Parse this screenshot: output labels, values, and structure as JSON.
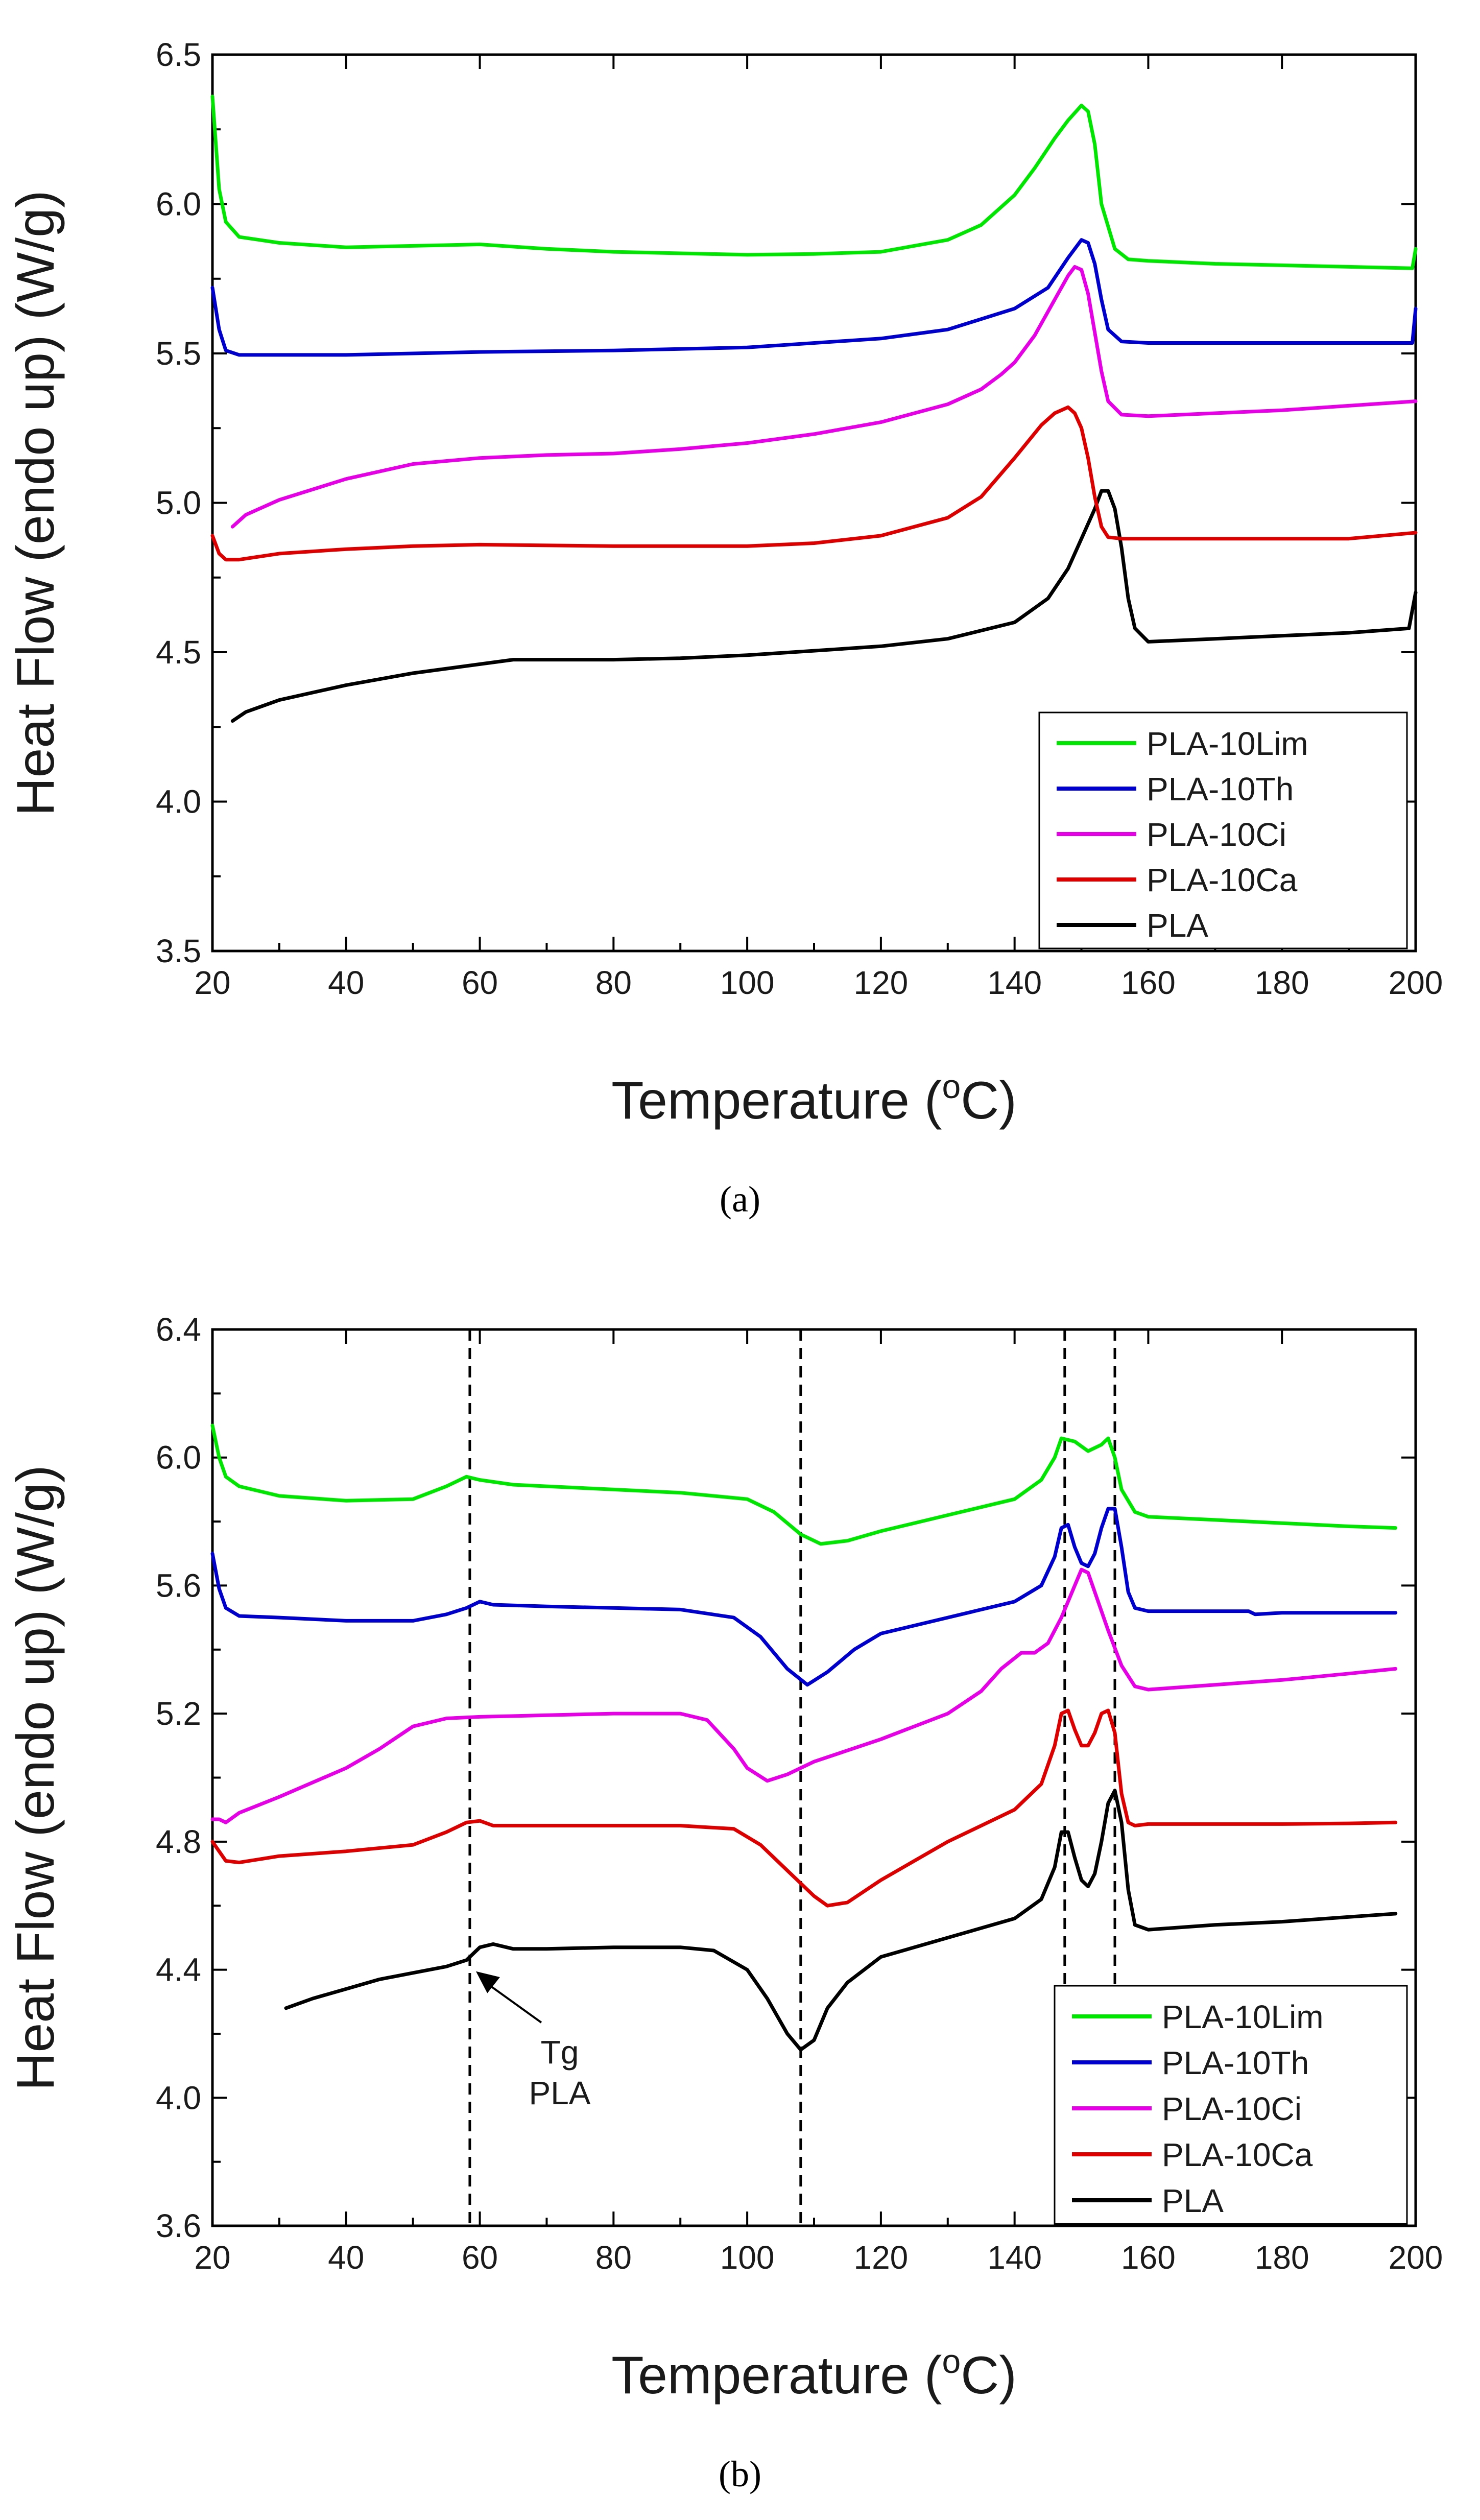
{
  "colors": {
    "PLA-10Lim": "#00e600",
    "PLA-10Th": "#0000cc",
    "PLA-10Ci": "#e600e6",
    "PLA-10Ca": "#dd0000",
    "PLA": "#000000"
  },
  "chart_data": [
    {
      "panel": "(a)",
      "type": "line",
      "title": "",
      "xlabel": "Temperature (",
      "xlabel_sup": "o",
      "xlabel_end": "C)",
      "ylabel": "Heat Flow (endo up) (W/g)",
      "xlim": [
        20,
        200
      ],
      "ylim": [
        3.5,
        6.5
      ],
      "xticks": [
        "20",
        "40",
        "60",
        "80",
        "100",
        "120",
        "140",
        "160",
        "180",
        "200"
      ],
      "yticks": [
        "3.5",
        "4.0",
        "4.5",
        "5.0",
        "5.5",
        "6.0",
        "6.5"
      ],
      "legend_position": "bottom-right",
      "series": [
        {
          "name": "PLA-10Lim",
          "x": [
            20,
            21,
            22,
            24,
            30,
            40,
            50,
            60,
            70,
            80,
            90,
            100,
            110,
            120,
            130,
            135,
            140,
            143,
            146,
            148,
            150,
            151,
            152,
            153,
            155,
            157,
            160,
            170,
            180,
            190,
            199.5,
            200
          ],
          "y": [
            6.36,
            6.05,
            5.94,
            5.89,
            5.87,
            5.855,
            5.86,
            5.865,
            5.85,
            5.84,
            5.835,
            5.83,
            5.833,
            5.84,
            5.88,
            5.93,
            6.03,
            6.12,
            6.22,
            6.28,
            6.33,
            6.31,
            6.2,
            6.0,
            5.85,
            5.815,
            5.81,
            5.8,
            5.795,
            5.79,
            5.785,
            5.85
          ]
        },
        {
          "name": "PLA-10Th",
          "x": [
            20,
            21,
            22,
            24,
            30,
            40,
            50,
            60,
            80,
            100,
            120,
            130,
            140,
            145,
            148,
            150,
            151,
            152,
            153,
            154,
            156,
            160,
            170,
            180,
            190,
            199.5,
            200
          ],
          "y": [
            5.72,
            5.58,
            5.51,
            5.495,
            5.495,
            5.495,
            5.5,
            5.505,
            5.51,
            5.52,
            5.55,
            5.58,
            5.65,
            5.72,
            5.82,
            5.88,
            5.87,
            5.8,
            5.68,
            5.58,
            5.54,
            5.535,
            5.535,
            5.535,
            5.535,
            5.535,
            5.65
          ]
        },
        {
          "name": "PLA-10Ci",
          "x": [
            23,
            25,
            30,
            40,
            50,
            60,
            70,
            80,
            90,
            100,
            110,
            120,
            130,
            135,
            138,
            140,
            143,
            146,
            148,
            149,
            150,
            151,
            152,
            153,
            154,
            156,
            160,
            170,
            180,
            190,
            200
          ],
          "y": [
            4.92,
            4.96,
            5.01,
            5.08,
            5.13,
            5.15,
            5.16,
            5.165,
            5.18,
            5.2,
            5.23,
            5.27,
            5.33,
            5.38,
            5.43,
            5.47,
            5.56,
            5.68,
            5.76,
            5.79,
            5.78,
            5.7,
            5.57,
            5.44,
            5.34,
            5.295,
            5.29,
            5.3,
            5.31,
            5.325,
            5.34
          ]
        },
        {
          "name": "PLA-10Ca",
          "x": [
            20,
            21,
            22,
            24,
            30,
            40,
            50,
            60,
            80,
            100,
            110,
            120,
            130,
            135,
            140,
            144,
            146,
            148,
            149,
            150,
            151,
            152,
            153,
            154,
            156,
            160,
            170,
            180,
            190,
            200
          ],
          "y": [
            4.89,
            4.83,
            4.81,
            4.81,
            4.83,
            4.845,
            4.855,
            4.86,
            4.855,
            4.855,
            4.865,
            4.89,
            4.95,
            5.02,
            5.15,
            5.26,
            5.3,
            5.32,
            5.3,
            5.25,
            5.15,
            5.02,
            4.92,
            4.885,
            4.88,
            4.88,
            4.88,
            4.88,
            4.88,
            4.9
          ]
        },
        {
          "name": "PLA",
          "x": [
            23,
            25,
            30,
            40,
            50,
            60,
            65,
            70,
            80,
            90,
            100,
            110,
            120,
            130,
            140,
            145,
            148,
            150,
            152,
            153,
            154,
            155,
            156,
            157,
            158,
            160,
            170,
            180,
            190,
            199,
            200
          ],
          "y": [
            4.27,
            4.3,
            4.34,
            4.39,
            4.43,
            4.46,
            4.475,
            4.475,
            4.475,
            4.48,
            4.49,
            4.505,
            4.52,
            4.545,
            4.6,
            4.68,
            4.78,
            4.88,
            4.98,
            5.04,
            5.04,
            4.98,
            4.85,
            4.68,
            4.58,
            4.535,
            4.545,
            4.555,
            4.565,
            4.58,
            4.7
          ]
        }
      ]
    },
    {
      "panel": "(b)",
      "type": "line",
      "title": "",
      "xlabel": "Temperature (",
      "xlabel_sup": "o",
      "xlabel_end": "C)",
      "ylabel": "Heat Flow (endo up) (W/g)",
      "xlim": [
        20,
        200
      ],
      "ylim": [
        3.6,
        6.4
      ],
      "xticks": [
        "20",
        "40",
        "60",
        "80",
        "100",
        "120",
        "140",
        "160",
        "180",
        "200"
      ],
      "yticks": [
        "3.6",
        "4.0",
        "4.4",
        "4.8",
        "5.2",
        "5.6",
        "6.0",
        "6.4"
      ],
      "legend_position": "bottom-right",
      "dashed_lines_x": [
        58.5,
        108,
        147.5,
        155
      ],
      "annotation": {
        "line1": "Tg",
        "line2": "PLA",
        "points_to_x": 58.5,
        "points_to_y": 4.43
      },
      "series": [
        {
          "name": "PLA-10Lim",
          "x": [
            20,
            21,
            22,
            24,
            30,
            40,
            50,
            55,
            58,
            60,
            65,
            70,
            80,
            90,
            100,
            104,
            108,
            111,
            115,
            120,
            130,
            140,
            144,
            146,
            147,
            149,
            151,
            153,
            154,
            155,
            156,
            158,
            160,
            170,
            180,
            190,
            197
          ],
          "y": [
            6.1,
            6.0,
            5.94,
            5.91,
            5.88,
            5.865,
            5.87,
            5.91,
            5.94,
            5.93,
            5.915,
            5.91,
            5.9,
            5.89,
            5.87,
            5.83,
            5.76,
            5.73,
            5.74,
            5.77,
            5.82,
            5.87,
            5.93,
            6.0,
            6.06,
            6.05,
            6.02,
            6.04,
            6.06,
            6.0,
            5.9,
            5.83,
            5.815,
            5.805,
            5.795,
            5.785,
            5.78
          ]
        },
        {
          "name": "PLA-10Th",
          "x": [
            20,
            21,
            22,
            24,
            30,
            40,
            50,
            55,
            58,
            60,
            62,
            70,
            80,
            90,
            98,
            102,
            106,
            109,
            112,
            116,
            120,
            130,
            140,
            144,
            146,
            147,
            148,
            149,
            150,
            151,
            152,
            153,
            154,
            155,
            156,
            157,
            158,
            160,
            170,
            175,
            176,
            180,
            190,
            197
          ],
          "y": [
            5.7,
            5.59,
            5.53,
            5.505,
            5.5,
            5.49,
            5.49,
            5.51,
            5.53,
            5.55,
            5.54,
            5.535,
            5.53,
            5.525,
            5.5,
            5.44,
            5.34,
            5.29,
            5.33,
            5.4,
            5.45,
            5.5,
            5.55,
            5.6,
            5.69,
            5.78,
            5.79,
            5.72,
            5.67,
            5.66,
            5.7,
            5.78,
            5.84,
            5.84,
            5.72,
            5.58,
            5.53,
            5.52,
            5.52,
            5.52,
            5.51,
            5.515,
            5.515,
            5.515
          ]
        },
        {
          "name": "PLA-10Ci",
          "x": [
            20,
            21,
            22,
            24,
            30,
            40,
            45,
            50,
            55,
            60,
            70,
            80,
            90,
            94,
            98,
            100,
            103,
            106,
            110,
            120,
            130,
            135,
            138,
            141,
            143,
            145,
            147,
            149,
            150,
            151,
            152,
            154,
            156,
            158,
            160,
            170,
            180,
            190,
            197
          ],
          "y": [
            4.87,
            4.87,
            4.86,
            4.89,
            4.94,
            5.03,
            5.09,
            5.16,
            5.185,
            5.19,
            5.195,
            5.2,
            5.2,
            5.18,
            5.09,
            5.03,
            4.99,
            5.01,
            5.05,
            5.12,
            5.2,
            5.27,
            5.34,
            5.39,
            5.39,
            5.42,
            5.5,
            5.6,
            5.65,
            5.64,
            5.58,
            5.46,
            5.35,
            5.285,
            5.275,
            5.29,
            5.305,
            5.325,
            5.34
          ]
        },
        {
          "name": "PLA-10Ca",
          "x": [
            20,
            21,
            22,
            24,
            30,
            40,
            50,
            55,
            58,
            60,
            62,
            70,
            80,
            90,
            98,
            102,
            106,
            110,
            112,
            115,
            120,
            130,
            140,
            144,
            146,
            147,
            148,
            149,
            150,
            151,
            152,
            153,
            154,
            155,
            156,
            157,
            158,
            160,
            170,
            180,
            190,
            197
          ],
          "y": [
            4.8,
            4.77,
            4.74,
            4.735,
            4.755,
            4.77,
            4.79,
            4.83,
            4.86,
            4.865,
            4.85,
            4.85,
            4.85,
            4.85,
            4.84,
            4.79,
            4.71,
            4.63,
            4.6,
            4.61,
            4.68,
            4.8,
            4.9,
            4.98,
            5.1,
            5.2,
            5.21,
            5.15,
            5.1,
            5.1,
            5.14,
            5.2,
            5.21,
            5.14,
            4.95,
            4.86,
            4.85,
            4.855,
            4.855,
            4.855,
            4.857,
            4.86
          ]
        },
        {
          "name": "PLA",
          "x": [
            31,
            35,
            40,
            45,
            50,
            55,
            58,
            60,
            62,
            65,
            70,
            80,
            90,
            95,
            100,
            103,
            106,
            108,
            110,
            112,
            115,
            120,
            130,
            140,
            144,
            146,
            147,
            148,
            149,
            150,
            151,
            152,
            153,
            154,
            155,
            156,
            157,
            158,
            160,
            170,
            180,
            190,
            197
          ],
          "y": [
            4.28,
            4.31,
            4.34,
            4.37,
            4.39,
            4.41,
            4.43,
            4.47,
            4.48,
            4.465,
            4.465,
            4.47,
            4.47,
            4.46,
            4.4,
            4.31,
            4.2,
            4.15,
            4.18,
            4.28,
            4.36,
            4.44,
            4.5,
            4.56,
            4.62,
            4.72,
            4.83,
            4.83,
            4.75,
            4.68,
            4.66,
            4.7,
            4.8,
            4.92,
            4.96,
            4.86,
            4.65,
            4.54,
            4.525,
            4.54,
            4.55,
            4.565,
            4.575
          ]
        }
      ]
    }
  ]
}
